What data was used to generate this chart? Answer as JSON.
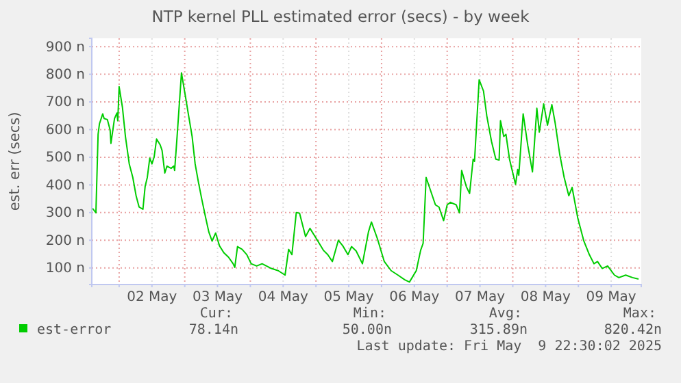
{
  "chart_data": {
    "type": "line",
    "title": "NTP kernel PLL estimated error (secs) - by week",
    "ylabel": "est. err (secs)",
    "xlim": [
      "2025-05-01T14:00",
      "2025-05-09T23:00"
    ],
    "xticks": [
      {
        "value": "2025-05-02",
        "label": null
      },
      {
        "value": "2025-05-02T12:00",
        "label": "02 May"
      },
      {
        "value": "2025-05-03",
        "label": null
      },
      {
        "value": "2025-05-03T12:00",
        "label": "03 May"
      },
      {
        "value": "2025-05-04",
        "label": null
      },
      {
        "value": "2025-05-04T12:00",
        "label": "04 May"
      },
      {
        "value": "2025-05-05",
        "label": null
      },
      {
        "value": "2025-05-05T12:00",
        "label": "05 May"
      },
      {
        "value": "2025-05-06",
        "label": null
      },
      {
        "value": "2025-05-06T12:00",
        "label": "06 May"
      },
      {
        "value": "2025-05-07",
        "label": null
      },
      {
        "value": "2025-05-07T12:00",
        "label": "07 May"
      },
      {
        "value": "2025-05-08",
        "label": null
      },
      {
        "value": "2025-05-08T12:00",
        "label": "08 May"
      },
      {
        "value": "2025-05-09",
        "label": null
      },
      {
        "value": "2025-05-09T12:00",
        "label": "09 May"
      }
    ],
    "ylim": [
      40,
      930
    ],
    "yticks": [
      {
        "value": 100,
        "label": "100 n"
      },
      {
        "value": 200,
        "label": "200 n"
      },
      {
        "value": 300,
        "label": "300 n"
      },
      {
        "value": 400,
        "label": "400 n"
      },
      {
        "value": 500,
        "label": "500 n"
      },
      {
        "value": 600,
        "label": "600 n"
      },
      {
        "value": 700,
        "label": "700 n"
      },
      {
        "value": 800,
        "label": "800 n"
      },
      {
        "value": 900,
        "label": "900 n"
      }
    ],
    "grid": true,
    "legend": "bottom left",
    "line_style": "solid",
    "annotations": [
      "Cur:",
      "Min:",
      "Avg:",
      "Max:",
      "78.14n",
      "50.00n",
      "315.89n",
      "820.42n",
      "Last update: Fri May  9 22:30:02 2025"
    ],
    "series": [
      {
        "name": "est-error",
        "color": "#00cc00",
        "x": [
          "2025-05-01T14:18",
          "2025-05-01T15:30",
          "2025-05-01T16:18",
          "2025-05-01T16:48",
          "2025-05-01T18:00",
          "2025-05-01T18:30",
          "2025-05-01T19:42",
          "2025-05-01T20:42",
          "2025-05-01T21:00",
          "2025-05-01T22:18",
          "2025-05-01T23:12",
          "2025-05-01T23:30",
          "2025-05-02T00:00",
          "2025-05-02T01:12",
          "2025-05-02T02:18",
          "2025-05-02T03:42",
          "2025-05-02T05:00",
          "2025-05-02T06:12",
          "2025-05-02T07:18",
          "2025-05-02T08:42",
          "2025-05-02T09:30",
          "2025-05-02T10:18",
          "2025-05-02T11:12",
          "2025-05-02T12:00",
          "2025-05-02T12:48",
          "2025-05-02T13:42",
          "2025-05-02T15:00",
          "2025-05-02T15:42",
          "2025-05-02T16:42",
          "2025-05-02T17:30",
          "2025-05-02T19:00",
          "2025-05-02T20:00",
          "2025-05-02T20:18",
          "2025-05-02T21:12",
          "2025-05-02T22:48",
          "2025-05-03T00:12",
          "2025-05-03T01:18",
          "2025-05-03T02:42",
          "2025-05-03T03:48",
          "2025-05-03T05:00",
          "2025-05-03T06:18",
          "2025-05-03T07:42",
          "2025-05-03T08:48",
          "2025-05-03T10:00",
          "2025-05-03T11:18",
          "2025-05-03T12:42",
          "2025-05-03T14:18",
          "2025-05-03T16:00",
          "2025-05-03T17:42",
          "2025-05-03T18:18",
          "2025-05-03T19:18",
          "2025-05-03T21:00",
          "2025-05-03T22:42",
          "2025-05-04T00:18",
          "2025-05-04T02:18",
          "2025-05-04T04:18",
          "2025-05-04T07:42",
          "2025-05-04T10:12",
          "2025-05-04T12:42",
          "2025-05-04T14:00",
          "2025-05-04T15:12",
          "2025-05-04T16:48",
          "2025-05-04T18:00",
          "2025-05-04T20:12",
          "2025-05-04T21:48",
          "2025-05-05T00:12",
          "2025-05-05T02:42",
          "2025-05-05T04:18",
          "2025-05-05T06:00",
          "2025-05-05T08:12",
          "2025-05-05T09:48",
          "2025-05-05T11:42",
          "2025-05-05T13:00",
          "2025-05-05T14:42",
          "2025-05-05T17:00",
          "2025-05-05T19:12",
          "2025-05-05T20:18",
          "2025-05-05T22:30",
          "2025-05-06T01:00",
          "2025-05-06T03:30",
          "2025-05-06T06:00",
          "2025-05-06T08:30",
          "2025-05-06T10:12",
          "2025-05-06T12:42",
          "2025-05-06T14:18",
          "2025-05-06T15:12",
          "2025-05-06T16:18",
          "2025-05-06T17:42",
          "2025-05-06T19:42",
          "2025-05-06T21:00",
          "2025-05-06T22:42",
          "2025-05-07T00:00",
          "2025-05-07T01:12",
          "2025-05-07T03:18",
          "2025-05-07T04:30",
          "2025-05-07T05:18",
          "2025-05-07T07:00",
          "2025-05-07T08:12",
          "2025-05-07T09:30",
          "2025-05-07T10:00",
          "2025-05-07T11:42",
          "2025-05-07T13:18",
          "2025-05-07T14:30",
          "2025-05-07T16:12",
          "2025-05-07T17:48",
          "2025-05-07T19:00",
          "2025-05-07T19:30",
          "2025-05-07T20:42",
          "2025-05-07T21:30",
          "2025-05-07T22:48",
          "2025-05-08T01:00",
          "2025-05-08T01:48",
          "2025-05-08T02:12",
          "2025-05-08T03:48",
          "2025-05-08T05:30",
          "2025-05-08T07:12",
          "2025-05-08T08:48",
          "2025-05-08T09:42",
          "2025-05-08T11:18",
          "2025-05-08T12:42",
          "2025-05-08T14:18",
          "2025-05-08T15:30",
          "2025-05-08T17:12",
          "2025-05-08T18:48",
          "2025-05-08T20:30",
          "2025-05-08T21:42",
          "2025-05-08T23:48",
          "2025-05-09T02:00",
          "2025-05-09T04:00",
          "2025-05-09T05:42",
          "2025-05-09T07:00",
          "2025-05-09T08:42",
          "2025-05-09T10:42",
          "2025-05-09T13:12",
          "2025-05-09T14:48",
          "2025-05-09T17:18",
          "2025-05-09T19:48",
          "2025-05-09T22:00"
        ],
        "values": [
          315,
          299,
          583,
          621,
          657,
          640,
          636,
          599,
          550,
          640,
          660,
          632,
          755,
          681,
          575,
          476,
          427,
          361,
          320,
          312,
          394,
          427,
          497,
          476,
          501,
          566,
          545,
          525,
          443,
          468,
          460,
          468,
          452,
          575,
          805,
          723,
          657,
          575,
          476,
          410,
          345,
          279,
          230,
          197,
          226,
          180,
          155,
          139,
          115,
          102,
          177,
          167,
          148,
          115,
          107,
          115,
          98,
          90,
          74,
          167,
          148,
          300,
          298,
          213,
          243,
          205,
          164,
          148,
          123,
          200,
          180,
          148,
          177,
          161,
          115,
          230,
          266,
          205,
          123,
          90,
          74,
          57,
          49,
          90,
          164,
          189,
          427,
          386,
          328,
          320,
          271,
          328,
          337,
          328,
          299,
          452,
          394,
          369,
          493,
          485,
          780,
          739,
          649,
          558,
          493,
          490,
          632,
          575,
          583,
          493,
          402,
          456,
          435,
          657,
          542,
          447,
          677,
          591,
          693,
          616,
          690,
          624,
          509,
          427,
          361,
          391,
          279,
          197,
          148,
          115,
          123,
          98,
          107,
          74,
          65,
          74,
          65,
          60
        ]
      }
    ]
  }
}
